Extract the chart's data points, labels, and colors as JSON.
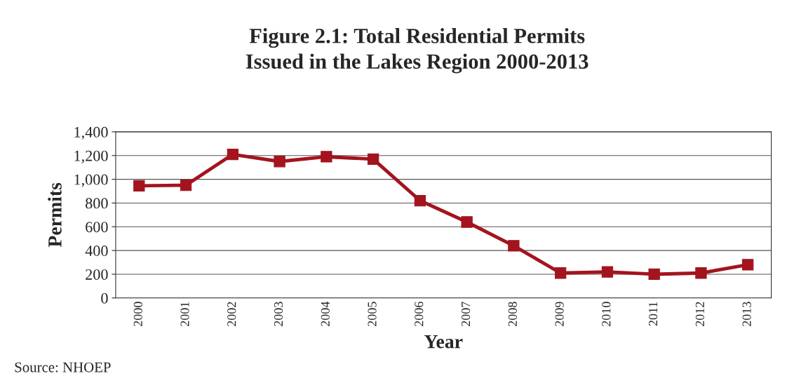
{
  "chart_data": {
    "type": "line",
    "title": "Figure 2.1: Total Residential Permits\nIssued in the Lakes Region 2000-2013",
    "xlabel": "Year",
    "ylabel": "Permits",
    "categories": [
      "2000",
      "2001",
      "2002",
      "2003",
      "2004",
      "2005",
      "2006",
      "2007",
      "2008",
      "2009",
      "2010",
      "2011",
      "2012",
      "2013"
    ],
    "series": [
      {
        "color": "#a3141e",
        "values": [
          945,
          950,
          1210,
          1150,
          1190,
          1170,
          820,
          640,
          440,
          210,
          220,
          200,
          210,
          280
        ]
      }
    ],
    "ylim": [
      0,
      1400
    ],
    "yticks": [
      {
        "value": 0,
        "label": "0"
      },
      {
        "value": 200,
        "label": "200"
      },
      {
        "value": 400,
        "label": "400"
      },
      {
        "value": 600,
        "label": "600"
      },
      {
        "value": 800,
        "label": "800"
      },
      {
        "value": 1000,
        "label": "1,000"
      },
      {
        "value": 1200,
        "label": "1,200"
      },
      {
        "value": 1400,
        "label": "1,400"
      }
    ],
    "grid": "y",
    "marker": "square",
    "line_style": "solid",
    "annotations": [
      "Source: NHOEP"
    ]
  }
}
